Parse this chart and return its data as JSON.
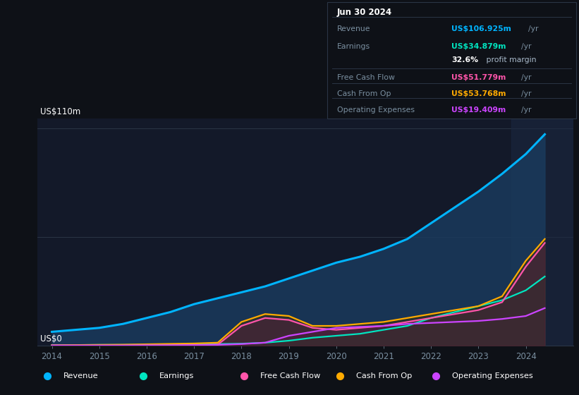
{
  "bg_color": "#0e1117",
  "plot_bg": "#131929",
  "title": "Jun 30 2024",
  "y_label_top": "US$110m",
  "y_label_bot": "US$0",
  "years": [
    2014,
    2014.5,
    2015,
    2015.5,
    2016,
    2016.5,
    2017,
    2017.5,
    2018,
    2018.5,
    2019,
    2019.5,
    2020,
    2020.5,
    2021,
    2021.5,
    2022,
    2022.5,
    2023,
    2023.5,
    2024,
    2024.4
  ],
  "revenue": [
    7,
    8,
    9,
    11,
    14,
    17,
    21,
    24,
    27,
    30,
    34,
    38,
    42,
    45,
    49,
    54,
    62,
    70,
    78,
    87,
    97,
    107
  ],
  "earnings": [
    0.3,
    0.3,
    0.4,
    0.4,
    0.5,
    0.6,
    0.7,
    0.8,
    1.0,
    1.5,
    2.5,
    4,
    5,
    6,
    8,
    10,
    14,
    17,
    20,
    23,
    28,
    35
  ],
  "fcf": [
    0.1,
    0.1,
    0.1,
    0.2,
    0.2,
    0.2,
    0.3,
    0.5,
    10,
    14,
    13,
    9,
    8,
    9,
    10,
    12,
    14,
    16,
    18,
    22,
    40,
    52
  ],
  "cashfromop": [
    0.2,
    0.3,
    0.4,
    0.5,
    0.7,
    0.9,
    1.1,
    1.5,
    12,
    16,
    15,
    10,
    10,
    11,
    12,
    14,
    16,
    18,
    20,
    25,
    43,
    54
  ],
  "opex": [
    0.1,
    0.1,
    0.1,
    0.1,
    0.2,
    0.2,
    0.3,
    0.4,
    0.8,
    1.5,
    5,
    7,
    9,
    9.5,
    10,
    11,
    11.5,
    12,
    12.5,
    13.5,
    15,
    19
  ],
  "revenue_color": "#00b4ff",
  "earnings_color": "#00e5c0",
  "fcf_color": "#ff55aa",
  "cashfromop_color": "#ffaa00",
  "opex_color": "#cc44ff",
  "revenue_fill": "#1a3a5c",
  "earnings_fill": "#004040",
  "fcf_fill": "#50203a",
  "cashfromop_fill": "#3a3010",
  "opex_fill": "#3a1870",
  "highlight_color": "#1a2840",
  "grid_color": "#2a3545",
  "tick_color": "#7a8fa0",
  "ylim": [
    0,
    115
  ],
  "xlim": [
    2013.7,
    2025.0
  ],
  "info_box": {
    "date": "Jun 30 2024",
    "rows": [
      {
        "label": "Revenue",
        "value": "US$106.925m",
        "unit": "/yr",
        "color": "#00b4ff",
        "has_divider": true
      },
      {
        "label": "Earnings",
        "value": "US$34.879m",
        "unit": "/yr",
        "color": "#00e5c0",
        "has_divider": false
      },
      {
        "label": "",
        "value": "32.6%",
        "extra": " profit margin",
        "color": "#ffffff",
        "has_divider": true
      },
      {
        "label": "Free Cash Flow",
        "value": "US$51.779m",
        "unit": "/yr",
        "color": "#ff55aa",
        "has_divider": true
      },
      {
        "label": "Cash From Op",
        "value": "US$53.768m",
        "unit": "/yr",
        "color": "#ffaa00",
        "has_divider": true
      },
      {
        "label": "Operating Expenses",
        "value": "US$19.409m",
        "unit": "/yr",
        "color": "#cc44ff",
        "has_divider": false
      }
    ]
  },
  "legend": [
    {
      "label": "Revenue",
      "color": "#00b4ff"
    },
    {
      "label": "Earnings",
      "color": "#00e5c0"
    },
    {
      "label": "Free Cash Flow",
      "color": "#ff55aa"
    },
    {
      "label": "Cash From Op",
      "color": "#ffaa00"
    },
    {
      "label": "Operating Expenses",
      "color": "#cc44ff"
    }
  ]
}
